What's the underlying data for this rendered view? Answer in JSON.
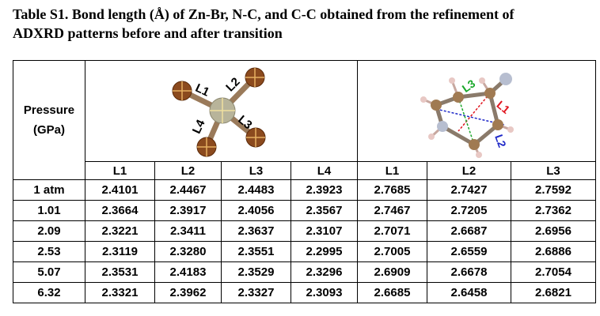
{
  "caption": {
    "line1": "Table S1. Bond length (Å) of Zn-Br, N-C, and C-C obtained from the refinement of",
    "line2": "ADXRD patterns before and after transition"
  },
  "table": {
    "header": {
      "pressure_line1": "Pressure",
      "pressure_line2": "(GPa)",
      "zn_br_columns": [
        "L1",
        "L2",
        "L3",
        "L4"
      ],
      "nc_cc_columns": [
        "L1",
        "L2",
        "L3"
      ]
    },
    "diagram_labels": {
      "left": [
        "L1",
        "L2",
        "L3",
        "L4"
      ],
      "right": [
        "L1",
        "L2",
        "L3"
      ]
    },
    "rows": [
      {
        "pressure": "1 atm",
        "values": [
          "2.4101",
          "2.4467",
          "2.4483",
          "2.3923",
          "2.7685",
          "2.7427",
          "2.7592"
        ]
      },
      {
        "pressure": "1.01",
        "values": [
          "2.3664",
          "2.3917",
          "2.4056",
          "2.3567",
          "2.7467",
          "2.7205",
          "2.7362"
        ]
      },
      {
        "pressure": "2.09",
        "values": [
          "2.3221",
          "2.3411",
          "2.3637",
          "2.3107",
          "2.7071",
          "2.6687",
          "2.6956"
        ]
      },
      {
        "pressure": "2.53",
        "values": [
          "2.3119",
          "2.3280",
          "2.3551",
          "2.2995",
          "2.7005",
          "2.6559",
          "2.6886"
        ]
      },
      {
        "pressure": "5.07",
        "values": [
          "2.3531",
          "2.4183",
          "2.3529",
          "2.3296",
          "2.6909",
          "2.6678",
          "2.7054"
        ]
      },
      {
        "pressure": "6.32",
        "values": [
          "2.3321",
          "2.3962",
          "2.3327",
          "2.3093",
          "2.6685",
          "2.6458",
          "2.6821"
        ]
      }
    ],
    "colors": {
      "zn_atom": "#b8b49a",
      "br_atom": "#8b4a1e",
      "c_atom": "#a07a52",
      "n_atom": "#b7bed0",
      "h_atom": "#e8c8c4",
      "l1_red": "#e0141e",
      "l2_blue": "#1e28c8",
      "l3_green": "#1aa82a"
    }
  }
}
